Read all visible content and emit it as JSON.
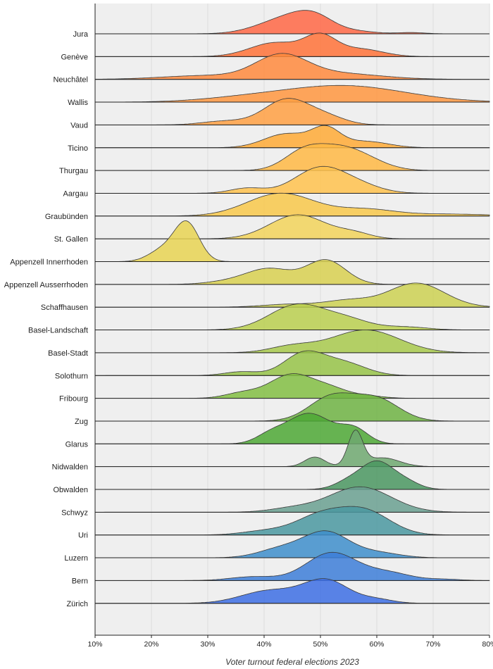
{
  "chart_data": {
    "type": "ridgeline",
    "xlabel": "Voter turnout federal elections 2023",
    "xlim": [
      10,
      80
    ],
    "xticks": [
      10,
      20,
      30,
      40,
      50,
      60,
      70,
      80
    ],
    "xtick_labels": [
      "10%",
      "20%",
      "30%",
      "40%",
      "50%",
      "60%",
      "70%",
      "80%"
    ],
    "grid": true,
    "series": [
      {
        "name": "Jura",
        "color": "#FF6745",
        "components": [
          [
            44,
            5,
            0.6
          ],
          [
            49,
            3.5,
            0.5
          ],
          [
            57,
            3,
            0.08
          ],
          [
            66,
            2.5,
            0.05
          ]
        ]
      },
      {
        "name": "Genève",
        "color": "#FF7238",
        "components": [
          [
            42,
            4.5,
            0.55
          ],
          [
            50,
            2.8,
            0.75
          ],
          [
            57,
            4,
            0.3
          ]
        ]
      },
      {
        "name": "Neuchâtel",
        "color": "#FF8A3D",
        "components": [
          [
            43,
            4.5,
            0.85
          ],
          [
            52,
            8,
            0.25
          ],
          [
            30,
            8,
            0.15
          ]
        ]
      },
      {
        "name": "Wallis",
        "color": "#FF9640",
        "components": [
          [
            54,
            11,
            0.65
          ],
          [
            36,
            8,
            0.12
          ]
        ]
      },
      {
        "name": "Vaud",
        "color": "#FFA043",
        "components": [
          [
            44,
            4,
            1.0
          ],
          [
            51,
            3.5,
            0.3
          ],
          [
            33,
            4,
            0.15
          ]
        ]
      },
      {
        "name": "Ticino",
        "color": "#FFAA36",
        "components": [
          [
            51,
            2.5,
            0.7
          ],
          [
            44,
            4,
            0.55
          ],
          [
            58,
            4,
            0.25
          ]
        ]
      },
      {
        "name": "Thurgau",
        "color": "#FFB844",
        "components": [
          [
            47,
            3.5,
            0.7
          ],
          [
            53,
            4,
            0.7
          ],
          [
            58,
            4,
            0.35
          ]
        ]
      },
      {
        "name": "Aargau",
        "color": "#FFC24E",
        "components": [
          [
            50,
            4.5,
            1.0
          ],
          [
            37,
            3,
            0.2
          ],
          [
            57,
            4,
            0.25
          ]
        ]
      },
      {
        "name": "Graubünden",
        "color": "#F8C84A",
        "components": [
          [
            43,
            6,
            0.9
          ],
          [
            58,
            5,
            0.25
          ],
          [
            72,
            8,
            0.08
          ]
        ]
      },
      {
        "name": "St. Gallen",
        "color": "#F2D45A",
        "components": [
          [
            46,
            5,
            0.95
          ],
          [
            56,
            3,
            0.2
          ]
        ]
      },
      {
        "name": "Appenzell Innerrhoden",
        "color": "#E8D452",
        "components": [
          [
            26.3,
            2.2,
            1.5
          ],
          [
            22,
            2.5,
            0.45
          ]
        ]
      },
      {
        "name": "Appenzell Ausserrhoden",
        "color": "#D8D050",
        "components": [
          [
            51,
            3.5,
            0.95
          ],
          [
            41,
            4,
            0.6
          ],
          [
            34,
            4,
            0.12
          ]
        ]
      },
      {
        "name": "Schaffhausen",
        "color": "#CCD152",
        "components": [
          [
            67,
            5,
            0.95
          ],
          [
            55,
            4,
            0.25
          ],
          [
            45,
            5,
            0.12
          ]
        ]
      },
      {
        "name": "Basel-Landschaft",
        "color": "#BACF4F",
        "components": [
          [
            46,
            5,
            1.0
          ],
          [
            55,
            4,
            0.35
          ],
          [
            65,
            4,
            0.12
          ]
        ]
      },
      {
        "name": "Basel-Stadt",
        "color": "#A8C94C",
        "components": [
          [
            58,
            6,
            0.9
          ],
          [
            45,
            4,
            0.25
          ]
        ]
      },
      {
        "name": "Solothurn",
        "color": "#96C348",
        "components": [
          [
            47,
            3.5,
            0.85
          ],
          [
            54,
            4,
            0.5
          ],
          [
            36,
            3,
            0.15
          ]
        ]
      },
      {
        "name": "Fribourg",
        "color": "#82BE43",
        "components": [
          [
            45,
            4,
            0.95
          ],
          [
            52,
            3,
            0.3
          ],
          [
            36,
            3,
            0.2
          ],
          [
            58,
            3,
            0.1
          ]
        ]
      },
      {
        "name": "Zug",
        "color": "#6EB343",
        "components": [
          [
            52,
            4,
            0.95
          ],
          [
            60,
            4,
            0.85
          ]
        ]
      },
      {
        "name": "Glarus",
        "color": "#4EA835",
        "components": [
          [
            48,
            4,
            1.2
          ],
          [
            56,
            2.5,
            0.55
          ],
          [
            41,
            2.5,
            0.3
          ]
        ]
      },
      {
        "name": "Nidwalden",
        "color": "#6EA870",
        "components": [
          [
            56.2,
            1.3,
            1.35
          ],
          [
            49,
            1.8,
            0.38
          ],
          [
            61,
            3,
            0.35
          ]
        ]
      },
      {
        "name": "Obwalden",
        "color": "#4A9660",
        "components": [
          [
            60,
            2.8,
            1.05
          ],
          [
            55,
            2.5,
            0.3
          ],
          [
            65,
            2.5,
            0.3
          ]
        ]
      },
      {
        "name": "Schwyz",
        "color": "#6AA090",
        "components": [
          [
            57,
            5.5,
            1.0
          ],
          [
            45,
            4,
            0.15
          ]
        ]
      },
      {
        "name": "Uri",
        "color": "#4A98A0",
        "components": [
          [
            58,
            4.5,
            0.9
          ],
          [
            50,
            4.5,
            0.75
          ],
          [
            40,
            4,
            0.15
          ]
        ]
      },
      {
        "name": "Luzern",
        "color": "#3E8ECB",
        "components": [
          [
            51,
            4,
            1.0
          ],
          [
            43,
            4,
            0.35
          ],
          [
            60,
            4,
            0.2
          ]
        ]
      },
      {
        "name": "Bern",
        "color": "#3D7ED8",
        "components": [
          [
            52,
            4.5,
            1.1
          ],
          [
            38,
            4,
            0.15
          ],
          [
            62,
            4,
            0.3
          ],
          [
            72,
            3,
            0.05
          ]
        ]
      },
      {
        "name": "Zürich",
        "color": "#3D6FE4",
        "components": [
          [
            51,
            4,
            0.9
          ],
          [
            41,
            5,
            0.5
          ],
          [
            60,
            3,
            0.15
          ]
        ]
      },
      {
        "name": "Zürich",
        "color": "#4866FF",
        "components": [
          [
            51,
            3.5,
            0.9
          ],
          [
            43,
            4.5,
            0.4
          ],
          [
            58,
            3.5,
            0.3
          ]
        ]
      }
    ]
  }
}
